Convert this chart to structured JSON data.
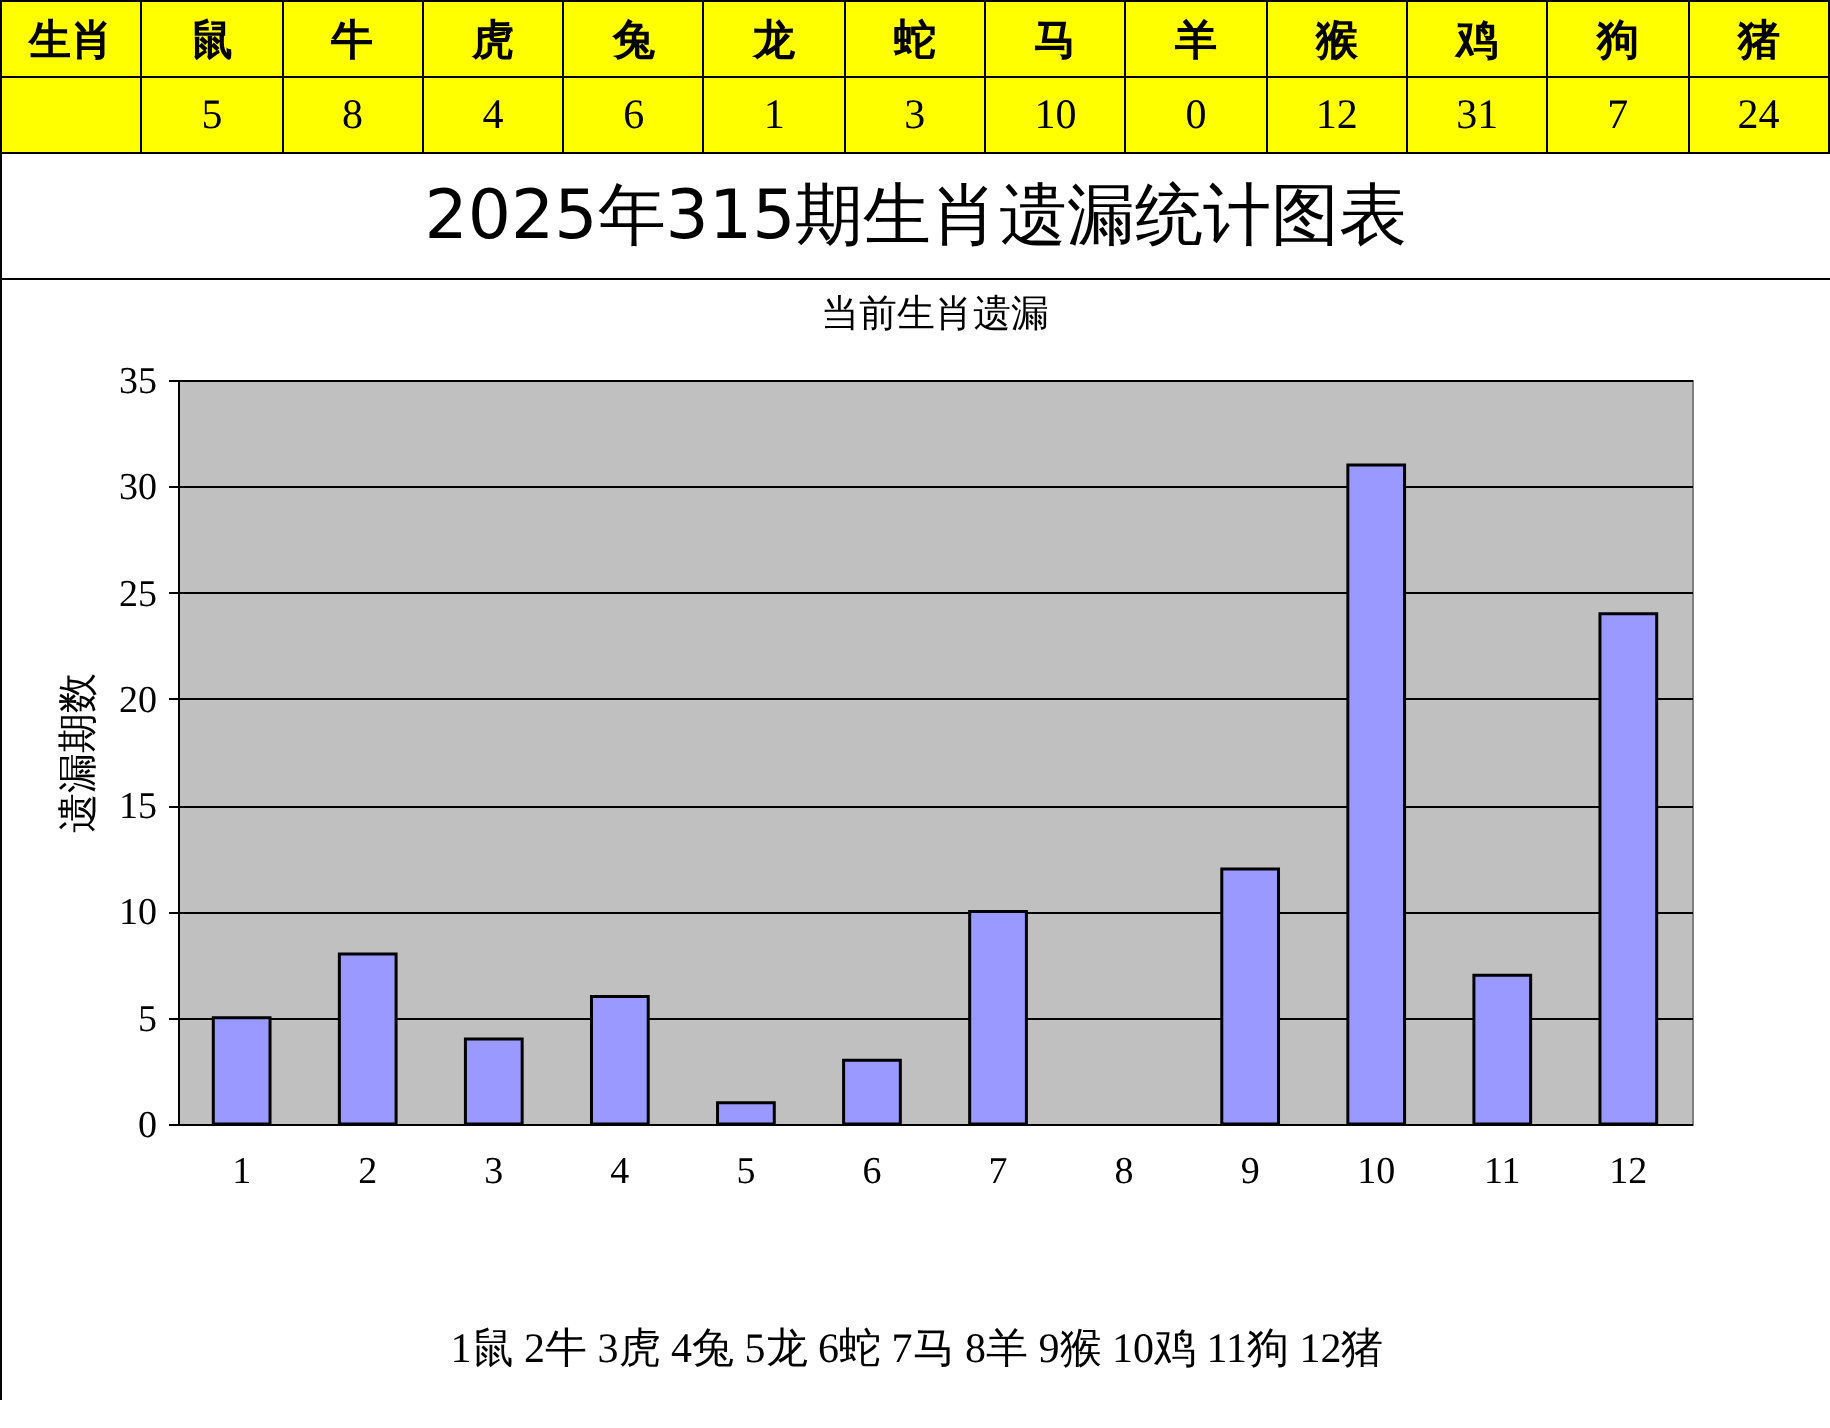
{
  "chart_data": [
    {
      "type": "other",
      "xlabel": "生肖",
      "categories": [
        "鼠",
        "牛",
        "虎",
        "兔",
        "龙",
        "蛇",
        "马",
        "羊",
        "猴",
        "鸡",
        "狗",
        "猪"
      ],
      "values": [
        5,
        8,
        4,
        6,
        1,
        3,
        10,
        0,
        12,
        31,
        7,
        24
      ],
      "data_labels": true
    },
    {
      "type": "bar",
      "title": "2025年315期生肖遗漏统计图表",
      "subtitle": "当前生肖遗漏",
      "ylabel": "遗漏期数",
      "categories": [
        "1",
        "2",
        "3",
        "4",
        "5",
        "6",
        "7",
        "8",
        "9",
        "10",
        "11",
        "12"
      ],
      "values": [
        5,
        8,
        4,
        6,
        1,
        3,
        10,
        0,
        12,
        31,
        7,
        24
      ],
      "color": "#9999ff",
      "ylim": [
        0,
        35
      ],
      "yticks": [
        0,
        5,
        10,
        15,
        20,
        25,
        30,
        35
      ],
      "grid": "y",
      "annotations": [
        "1鼠  2牛  3虎  4兔  5龙  6蛇  7马  8羊  9猴  10鸡  11狗  12猪"
      ]
    }
  ]
}
